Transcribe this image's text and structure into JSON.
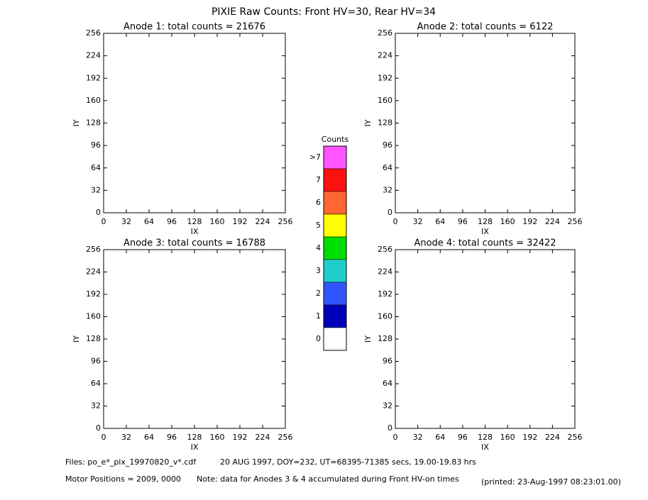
{
  "title": "PIXIE Raw Counts:  Front HV=30, Rear HV=34",
  "panels": [
    {
      "title": "Anode 1: total counts = 21676",
      "xlabel": "IX",
      "ylabel": "IY",
      "xlim": [
        0,
        256
      ],
      "ylim": [
        0,
        256
      ],
      "xticks": [
        0,
        32,
        64,
        96,
        128,
        160,
        192,
        224,
        256
      ],
      "yticks": [
        0,
        32,
        64,
        96,
        128,
        160,
        192,
        224,
        256
      ]
    },
    {
      "title": "Anode 2: total counts = 6122",
      "xlabel": "IX",
      "ylabel": "IY",
      "xlim": [
        0,
        256
      ],
      "ylim": [
        0,
        256
      ],
      "xticks": [
        0,
        32,
        64,
        96,
        128,
        160,
        192,
        224,
        256
      ],
      "yticks": [
        0,
        32,
        64,
        96,
        128,
        160,
        192,
        224,
        256
      ]
    },
    {
      "title": "Anode 3: total counts = 16788",
      "xlabel": "IX",
      "ylabel": "IY",
      "xlim": [
        0,
        256
      ],
      "ylim": [
        0,
        256
      ],
      "xticks": [
        0,
        32,
        64,
        96,
        128,
        160,
        192,
        224,
        256
      ],
      "yticks": [
        0,
        32,
        64,
        96,
        128,
        160,
        192,
        224,
        256
      ]
    },
    {
      "title": "Anode 4: total counts = 32422",
      "xlabel": "IX",
      "ylabel": "IY",
      "xlim": [
        0,
        256
      ],
      "ylim": [
        0,
        256
      ],
      "xticks": [
        0,
        32,
        64,
        96,
        128,
        160,
        192,
        224,
        256
      ],
      "yticks": [
        0,
        32,
        64,
        96,
        128,
        160,
        192,
        224,
        256
      ]
    }
  ],
  "colorbar": {
    "title": "Counts",
    "levels": [
      {
        "label": ">7",
        "color": "#ff55ff"
      },
      {
        "label": "7",
        "color": "#ff1010"
      },
      {
        "label": "6",
        "color": "#ff6633"
      },
      {
        "label": "5",
        "color": "#ffff00"
      },
      {
        "label": "4",
        "color": "#00dd00"
      },
      {
        "label": "3",
        "color": "#22cccc"
      },
      {
        "label": "2",
        "color": "#3355ff"
      },
      {
        "label": "1",
        "color": "#0000b8"
      },
      {
        "label": "0",
        "color": "#ffffff"
      }
    ]
  },
  "footer": {
    "files": "Files: po_e*_pix_19970820_v*.cdf",
    "time": "20 AUG 1997, DOY=232, UT=68395-71385 secs, 19.00-19.83 hrs",
    "motor": "Motor Positions = 2009, 0000",
    "note": "Note: data for Anodes 3 & 4 accumulated during Front HV-on times",
    "printed": "(printed: 23-Aug-1997 08:23:01.00)"
  }
}
